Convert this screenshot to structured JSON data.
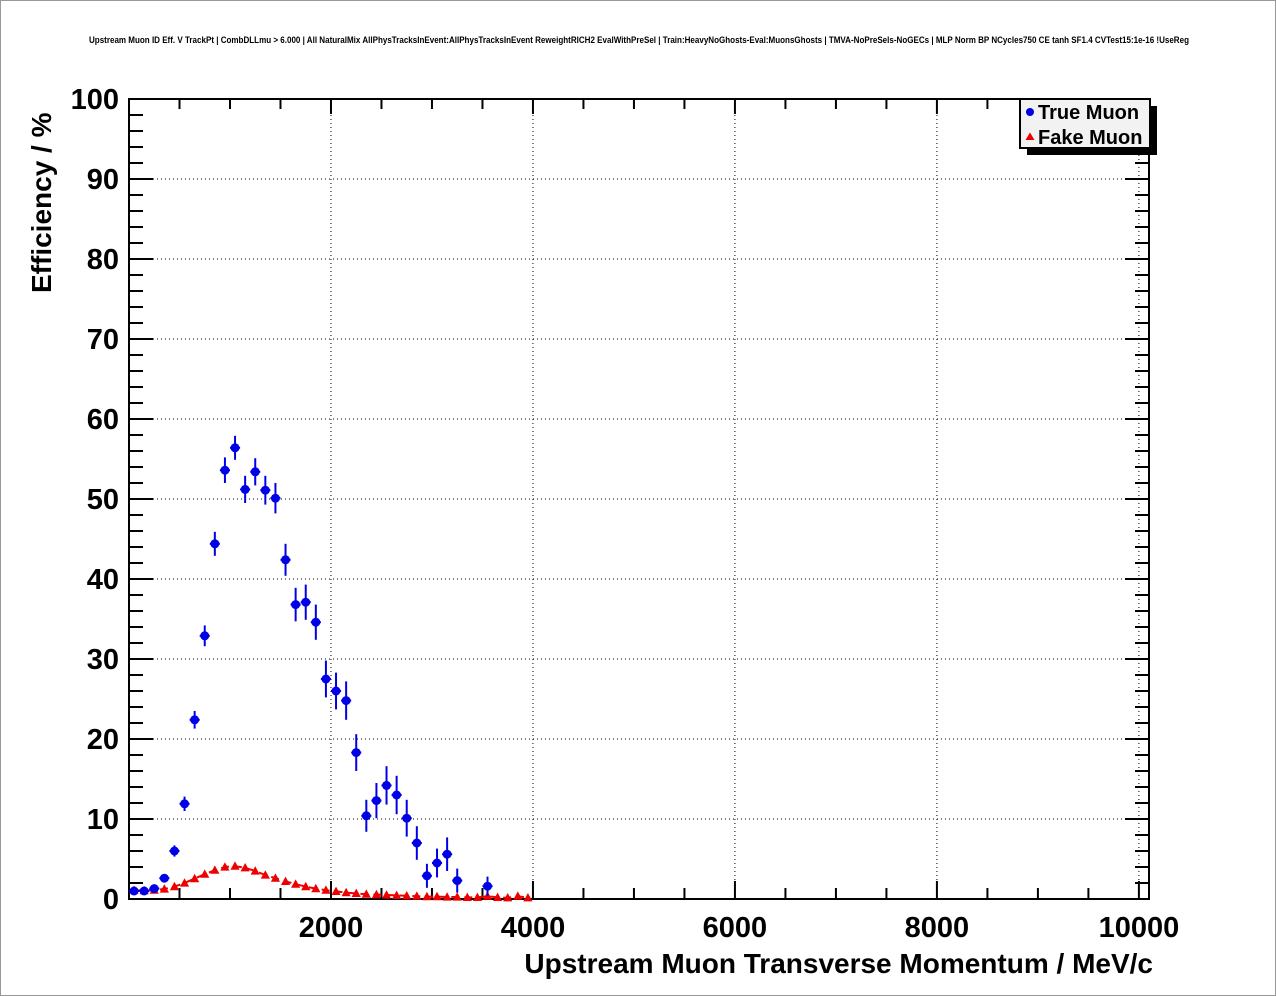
{
  "header": {
    "title": "Upstream Muon ID Eff. V TrackPt | CombDLLmu > 6.000 | All NaturalMix AllPhysTracksInEvent:AllPhysTracksInEvent ReweightRICH2 EvalWithPreSel | Train:HeavyNoGhosts-Eval:MuonsGhosts | TMVA-NoPreSels-NoGECs | MLP Norm BP NCycles750 CE tanh SF1.4 CVTest15:1e-16 !UseReg"
  },
  "legend": {
    "position": "top-right",
    "entries": [
      {
        "label": "True Muon",
        "marker": "circle",
        "color": "#0000e6"
      },
      {
        "label": "Fake Muon",
        "marker": "triangle",
        "color": "#ee0000"
      }
    ]
  },
  "colors": {
    "true_muon": "#0000e6",
    "fake_muon": "#ee0000",
    "frame": "#000000",
    "grid": "#000000",
    "legend_fill": "#f2f2f2",
    "legend_shadow": "#000000",
    "background": "#ffffff"
  },
  "chart_data": {
    "type": "scatter",
    "title": "Upstream Muon ID Eff. V TrackPt | CombDLLmu > 6.000 | All NaturalMix AllPhysTracksInEvent:AllPhysTracksInEvent ReweightRICH2 EvalWithPreSel | Train:HeavyNoGhosts-Eval:MuonsGhosts | TMVA-NoPreSels-NoGECs | MLP Norm BP NCycles750 CE tanh SF1.4 CVTest15:1e-16 !UseReg",
    "xlabel": "Upstream Muon Transverse Momentum / MeV/c",
    "ylabel": "Efficiency / %",
    "xlim": [
      0,
      10100
    ],
    "ylim": [
      0,
      100
    ],
    "x_major_ticks": [
      2000,
      4000,
      6000,
      8000,
      10000
    ],
    "x_tick_labels": [
      "2000",
      "4000",
      "6000",
      "8000",
      "10000"
    ],
    "x_minor_step": 500,
    "y_major_step": 10,
    "y_minor_step": 2,
    "y_tick_labels": [
      "0",
      "10",
      "20",
      "30",
      "40",
      "50",
      "60",
      "70",
      "80",
      "90",
      "100"
    ],
    "grid": "dotted-at-major-ticks",
    "legend_position": "top-right",
    "series": [
      {
        "name": "True Muon",
        "marker": "circle",
        "color": "#0000e6",
        "line": "none",
        "x_bin_half_width": 50,
        "x": [
          50,
          150,
          250,
          350,
          450,
          550,
          650,
          750,
          850,
          950,
          1050,
          1150,
          1250,
          1350,
          1450,
          1550,
          1650,
          1750,
          1850,
          1950,
          2050,
          2150,
          2250,
          2350,
          2450,
          2550,
          2650,
          2750,
          2850,
          2950,
          3050,
          3150,
          3250,
          3550
        ],
        "y": [
          1.0,
          1.0,
          1.3,
          2.6,
          6.0,
          11.9,
          22.4,
          32.9,
          44.4,
          53.6,
          56.4,
          51.2,
          53.4,
          51.1,
          50.1,
          42.4,
          36.8,
          37.1,
          34.6,
          27.5,
          26.0,
          24.8,
          18.3,
          10.4,
          12.3,
          14.2,
          13.0,
          10.1,
          7.0,
          2.9,
          4.5,
          5.6,
          2.3,
          1.6
        ],
        "yerr": [
          0.3,
          0.3,
          0.4,
          0.5,
          0.7,
          0.9,
          1.1,
          1.3,
          1.5,
          1.6,
          1.5,
          1.7,
          1.7,
          1.8,
          1.9,
          2.0,
          2.1,
          2.2,
          2.2,
          2.3,
          2.3,
          2.4,
          2.3,
          2.0,
          2.2,
          2.4,
          2.4,
          2.3,
          2.1,
          1.5,
          1.8,
          2.1,
          1.5,
          1.2
        ]
      },
      {
        "name": "Fake Muon",
        "marker": "triangle",
        "color": "#ee0000",
        "line": "dashed",
        "x_bin_half_width": 50,
        "x": [
          50,
          150,
          250,
          350,
          450,
          550,
          650,
          750,
          850,
          950,
          1050,
          1150,
          1250,
          1350,
          1450,
          1550,
          1650,
          1750,
          1850,
          1950,
          2050,
          2150,
          2250,
          2350,
          2450,
          2550,
          2650,
          2750,
          2850,
          2950,
          3050,
          3150,
          3250,
          3350,
          3450,
          3550,
          3650,
          3750,
          3850,
          3950
        ],
        "y": [
          1.1,
          1.05,
          1.1,
          1.25,
          1.55,
          2.0,
          2.55,
          3.1,
          3.6,
          4.0,
          4.1,
          3.9,
          3.5,
          3.0,
          2.6,
          2.2,
          1.85,
          1.55,
          1.3,
          1.1,
          0.95,
          0.8,
          0.7,
          0.6,
          0.55,
          0.5,
          0.45,
          0.4,
          0.35,
          0.3,
          0.3,
          0.25,
          0.25,
          0.2,
          0.2,
          0.35,
          0.2,
          0.15,
          0.35,
          0.15
        ],
        "yerr": 0.12
      }
    ]
  }
}
